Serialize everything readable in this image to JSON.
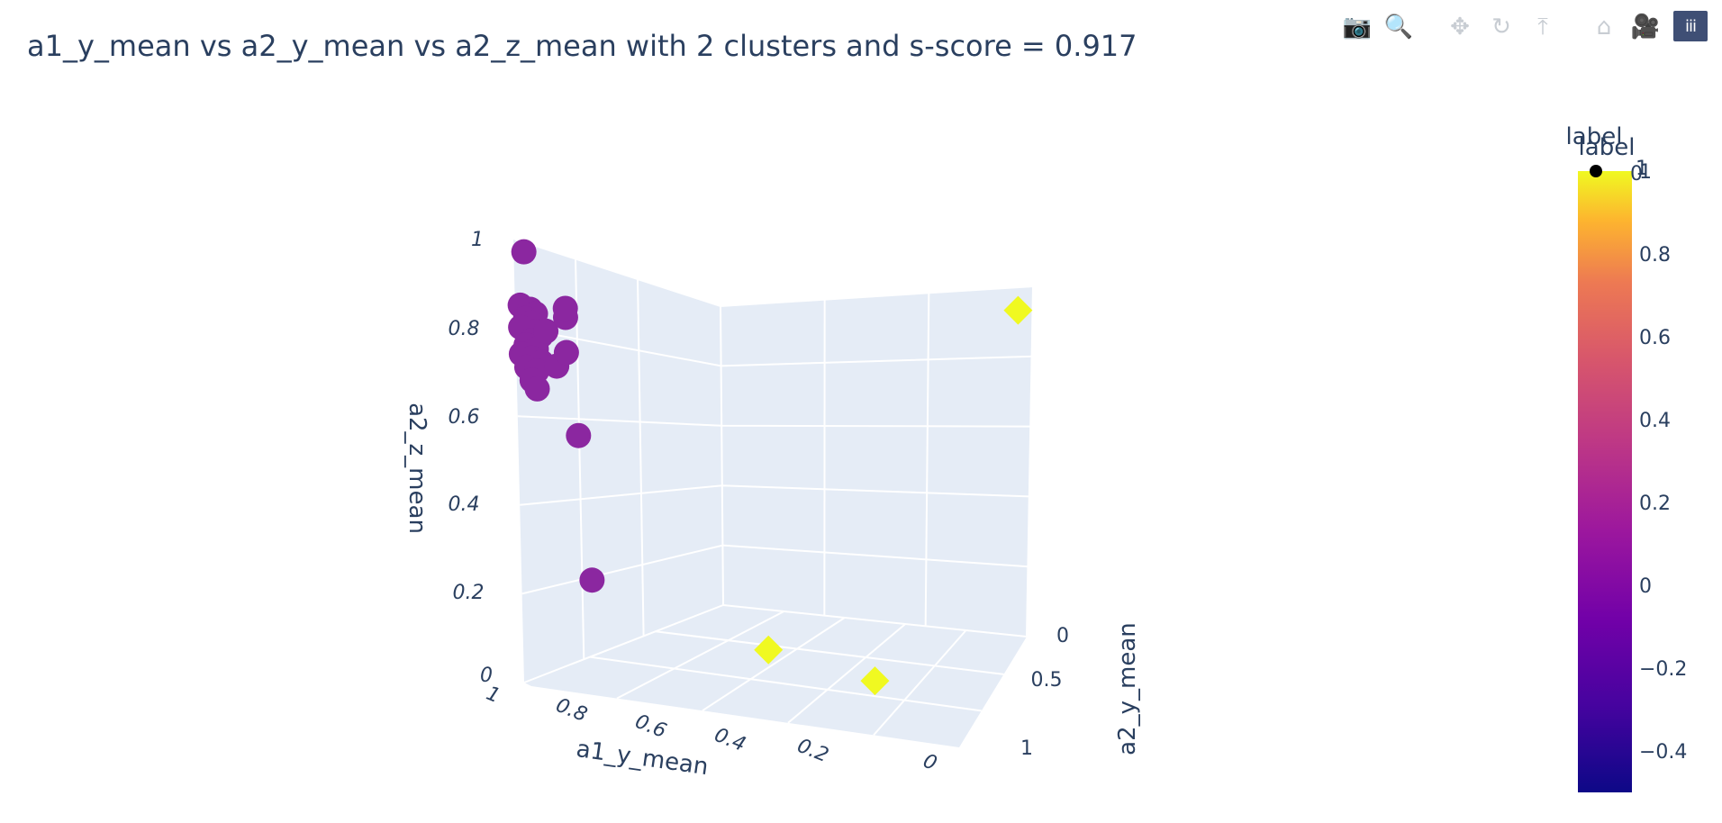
{
  "title": "a1_y_mean vs a2_y_mean vs a2_z_mean with 2 clusters and s-score = 0.917",
  "modebar": [
    {
      "name": "camera-icon",
      "glyph": "📷"
    },
    {
      "name": "zoom-icon",
      "glyph": "🔍"
    },
    {
      "name": "pan-icon",
      "glyph": "✥"
    },
    {
      "name": "orbit-rotation-icon",
      "glyph": "↻"
    },
    {
      "name": "turntable-rotation-icon",
      "glyph": "⤒"
    },
    {
      "name": "home-icon",
      "glyph": "⌂"
    },
    {
      "name": "camera-view-icon",
      "glyph": "🎥"
    },
    {
      "name": "plotly-logo-icon",
      "glyph": "iii"
    }
  ],
  "chart_data": {
    "type": "scatter3d",
    "title": "a1_y_mean vs a2_y_mean vs a2_z_mean with 2 clusters and s-score = 0.917",
    "x_axis": {
      "label": "a1_y_mean",
      "ticks": [
        "1",
        "0.8",
        "0.6",
        "0.4",
        "0.2",
        "0"
      ]
    },
    "y_axis": {
      "label": "a2_y_mean",
      "ticks": [
        "0",
        "0.5",
        "1"
      ]
    },
    "z_axis": {
      "label": "a2_z_mean",
      "ticks": [
        "0",
        "0.2",
        "0.4",
        "0.6",
        "0.8",
        "1"
      ]
    },
    "legend": {
      "title": "label",
      "entries": [
        "0",
        "1"
      ],
      "placement": "top-right"
    },
    "colorbar": {
      "title": "label",
      "ticks": [
        "1",
        "0.8",
        "0.6",
        "0.4",
        "0.2",
        "0",
        "−0.2",
        "−0.4"
      ],
      "range": [
        -0.5,
        1
      ]
    },
    "series": [
      {
        "name": "0",
        "color": "#8b27a0",
        "marker": "circle",
        "points": [
          {
            "x": 0.98,
            "y": 0.02,
            "z": 0.97
          },
          {
            "x": 0.99,
            "y": 0.03,
            "z": 0.85
          },
          {
            "x": 0.97,
            "y": 0.02,
            "z": 0.84
          },
          {
            "x": 0.96,
            "y": 0.04,
            "z": 0.83
          },
          {
            "x": 0.98,
            "y": 0.05,
            "z": 0.82
          },
          {
            "x": 0.97,
            "y": 0.03,
            "z": 0.81
          },
          {
            "x": 0.99,
            "y": 0.02,
            "z": 0.8
          },
          {
            "x": 0.96,
            "y": 0.03,
            "z": 0.79
          },
          {
            "x": 0.95,
            "y": 0.04,
            "z": 0.78
          },
          {
            "x": 0.97,
            "y": 0.05,
            "z": 0.77
          },
          {
            "x": 0.98,
            "y": 0.02,
            "z": 0.76
          },
          {
            "x": 0.96,
            "y": 0.04,
            "z": 0.75
          },
          {
            "x": 0.99,
            "y": 0.03,
            "z": 0.74
          },
          {
            "x": 0.97,
            "y": 0.02,
            "z": 0.73
          },
          {
            "x": 0.95,
            "y": 0.03,
            "z": 0.72
          },
          {
            "x": 0.98,
            "y": 0.05,
            "z": 0.71
          },
          {
            "x": 0.96,
            "y": 0.02,
            "z": 0.7
          },
          {
            "x": 0.94,
            "y": 0.04,
            "z": 0.79
          },
          {
            "x": 0.9,
            "y": 0.04,
            "z": 0.82
          },
          {
            "x": 0.92,
            "y": 0.03,
            "z": 0.71
          },
          {
            "x": 0.97,
            "y": 0.04,
            "z": 0.68
          },
          {
            "x": 0.96,
            "y": 0.03,
            "z": 0.66
          },
          {
            "x": 0.9,
            "y": 0.02,
            "z": 0.84
          },
          {
            "x": 0.9,
            "y": 0.03,
            "z": 0.74
          },
          {
            "x": 0.88,
            "y": 0.02,
            "z": 0.55
          },
          {
            "x": 0.86,
            "y": 0.03,
            "z": 0.22
          }
        ]
      },
      {
        "name": "1",
        "color": "#f0f921",
        "marker": "diamond",
        "points": [
          {
            "x": 0.0,
            "y": 0.0,
            "z": 0.8
          },
          {
            "x": 0.45,
            "y": 0.9,
            "z": 0.15
          },
          {
            "x": 0.2,
            "y": 0.95,
            "z": 0.12
          }
        ]
      }
    ]
  }
}
